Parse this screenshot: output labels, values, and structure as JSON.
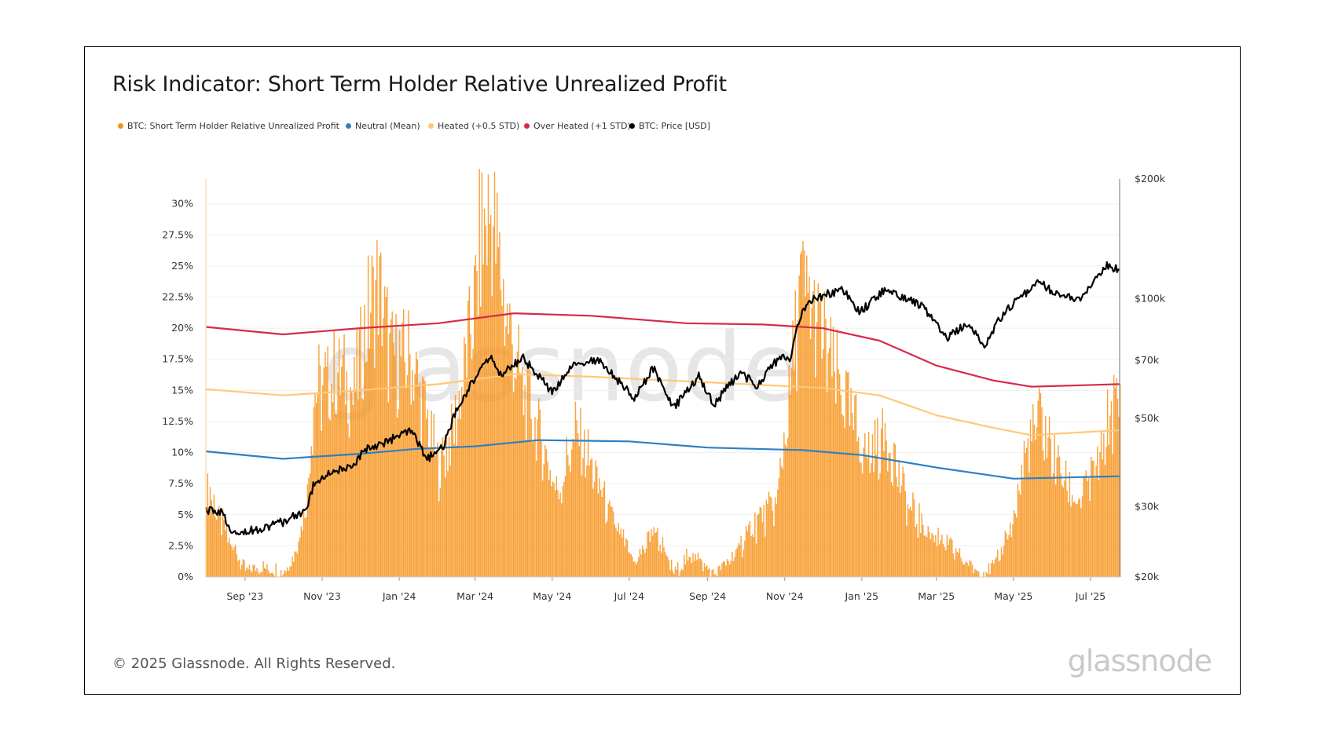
{
  "title": "Risk Indicator: Short Term Holder Relative Unrealized Profit",
  "legend": [
    {
      "label": "BTC: Short Term Holder Relative Unrealized Profit",
      "color": "#f7931a"
    },
    {
      "label": "Neutral (Mean)",
      "color": "#2f7fc1"
    },
    {
      "label": "Heated (+0.5 STD)",
      "color": "#ffc87a"
    },
    {
      "label": "Over Heated (+1 STD)",
      "color": "#d62a4a"
    },
    {
      "label": "BTC: Price [USD]",
      "color": "#000000"
    }
  ],
  "watermark": "glassnode",
  "footer": "© 2025 Glassnode. All Rights Reserved.",
  "logo": "glassnode",
  "chart_data": {
    "type": "bar",
    "x_start": "2023-08-01",
    "x_end": "2025-07-24",
    "x_ticks": [
      "Sep '23",
      "Nov '23",
      "Jan '24",
      "Mar '24",
      "May '24",
      "Jul '24",
      "Sep '24",
      "Nov '24",
      "Jan '25",
      "Mar '25",
      "May '25",
      "Jul '25"
    ],
    "y_left": {
      "ticks": [
        "0%",
        "2.5%",
        "5%",
        "7.5%",
        "10%",
        "12.5%",
        "15%",
        "17.5%",
        "20%",
        "22.5%",
        "25%",
        "27.5%",
        "30%"
      ],
      "ylim": [
        0,
        32
      ]
    },
    "y_right": {
      "ticks": [
        "$20k",
        "$30k",
        "$50k",
        "$70k",
        "$100k",
        "$200k"
      ],
      "scale": "log",
      "ylim": [
        20000,
        200000
      ]
    },
    "grid": true,
    "series": [
      {
        "name": "BTC: Short Term Holder Relative Unrealized Profit",
        "kind": "bar",
        "color": "#f7931a",
        "points": [
          [
            "2023-08-01",
            7.5
          ],
          [
            "2023-08-10",
            5
          ],
          [
            "2023-08-20",
            3
          ],
          [
            "2023-09-01",
            0.5
          ],
          [
            "2023-09-15",
            0.8
          ],
          [
            "2023-10-01",
            0.5
          ],
          [
            "2023-10-10",
            2
          ],
          [
            "2023-10-20",
            7
          ],
          [
            "2023-10-25",
            15
          ],
          [
            "2023-11-05",
            16
          ],
          [
            "2023-11-15",
            17
          ],
          [
            "2023-11-25",
            15
          ],
          [
            "2023-12-08",
            22
          ],
          [
            "2023-12-15",
            24
          ],
          [
            "2023-12-25",
            18
          ],
          [
            "2024-01-10",
            18
          ],
          [
            "2024-01-20",
            14
          ],
          [
            "2024-02-01",
            9
          ],
          [
            "2024-02-15",
            13
          ],
          [
            "2024-03-01",
            23
          ],
          [
            "2024-03-05",
            28
          ],
          [
            "2024-03-14",
            30
          ],
          [
            "2024-03-25",
            22
          ],
          [
            "2024-04-05",
            16
          ],
          [
            "2024-04-20",
            12
          ],
          [
            "2024-05-05",
            7
          ],
          [
            "2024-05-20",
            12
          ],
          [
            "2024-06-01",
            9
          ],
          [
            "2024-06-15",
            5
          ],
          [
            "2024-07-05",
            1
          ],
          [
            "2024-07-20",
            4
          ],
          [
            "2024-08-05",
            0.3
          ],
          [
            "2024-08-20",
            2
          ],
          [
            "2024-09-05",
            0.2
          ],
          [
            "2024-09-20",
            1.5
          ],
          [
            "2024-10-05",
            4
          ],
          [
            "2024-10-25",
            6
          ],
          [
            "2024-11-06",
            16
          ],
          [
            "2024-11-13",
            24
          ],
          [
            "2024-11-22",
            22
          ],
          [
            "2024-12-05",
            18
          ],
          [
            "2024-12-20",
            14
          ],
          [
            "2025-01-05",
            10
          ],
          [
            "2025-01-20",
            12
          ],
          [
            "2025-02-05",
            6
          ],
          [
            "2025-02-20",
            4
          ],
          [
            "2025-03-05",
            3
          ],
          [
            "2025-03-20",
            1.5
          ],
          [
            "2025-04-05",
            0.3
          ],
          [
            "2025-04-20",
            1.5
          ],
          [
            "2025-05-01",
            5
          ],
          [
            "2025-05-10",
            10
          ],
          [
            "2025-05-22",
            13
          ],
          [
            "2025-06-01",
            10
          ],
          [
            "2025-06-20",
            6
          ],
          [
            "2025-07-01",
            8
          ],
          [
            "2025-07-10",
            10
          ],
          [
            "2025-07-17",
            14
          ],
          [
            "2025-07-24",
            14
          ]
        ]
      },
      {
        "name": "Neutral (Mean)",
        "kind": "line",
        "axis": "left",
        "color": "#2f7fc1",
        "points": [
          [
            "2023-08-01",
            10.1
          ],
          [
            "2023-10-01",
            9.5
          ],
          [
            "2023-12-01",
            9.9
          ],
          [
            "2024-01-15",
            10.3
          ],
          [
            "2024-03-01",
            10.5
          ],
          [
            "2024-04-20",
            11.0
          ],
          [
            "2024-07-01",
            10.9
          ],
          [
            "2024-09-01",
            10.4
          ],
          [
            "2024-11-15",
            10.2
          ],
          [
            "2025-01-01",
            9.8
          ],
          [
            "2025-03-01",
            8.8
          ],
          [
            "2025-05-01",
            7.9
          ],
          [
            "2025-07-24",
            8.1
          ]
        ]
      },
      {
        "name": "Heated (+0.5 STD)",
        "kind": "line",
        "axis": "left",
        "color": "#ffc87a",
        "points": [
          [
            "2023-08-01",
            15.1
          ],
          [
            "2023-10-01",
            14.6
          ],
          [
            "2023-12-01",
            15.0
          ],
          [
            "2024-02-01",
            15.5
          ],
          [
            "2024-04-01",
            16.3
          ],
          [
            "2024-06-01",
            16.1
          ],
          [
            "2024-08-01",
            15.8
          ],
          [
            "2024-10-01",
            15.5
          ],
          [
            "2024-12-01",
            15.2
          ],
          [
            "2025-01-15",
            14.6
          ],
          [
            "2025-03-01",
            13.0
          ],
          [
            "2025-04-15",
            12.0
          ],
          [
            "2025-05-15",
            11.4
          ],
          [
            "2025-07-24",
            11.8
          ]
        ]
      },
      {
        "name": "Over Heated (+1 STD)",
        "kind": "line",
        "axis": "left",
        "color": "#d62a4a",
        "points": [
          [
            "2023-08-01",
            20.1
          ],
          [
            "2023-10-01",
            19.5
          ],
          [
            "2023-12-01",
            20.0
          ],
          [
            "2024-02-01",
            20.4
          ],
          [
            "2024-04-01",
            21.2
          ],
          [
            "2024-06-01",
            21.0
          ],
          [
            "2024-08-15",
            20.4
          ],
          [
            "2024-10-15",
            20.3
          ],
          [
            "2024-12-01",
            20.0
          ],
          [
            "2025-01-15",
            19.0
          ],
          [
            "2025-03-01",
            17.0
          ],
          [
            "2025-04-15",
            15.8
          ],
          [
            "2025-05-15",
            15.3
          ],
          [
            "2025-07-24",
            15.5
          ]
        ]
      },
      {
        "name": "BTC: Price [USD]",
        "kind": "line",
        "axis": "right",
        "color": "#000000",
        "points": [
          [
            "2023-08-01",
            29300
          ],
          [
            "2023-08-16",
            29000
          ],
          [
            "2023-08-18",
            26500
          ],
          [
            "2023-09-01",
            26000
          ],
          [
            "2023-09-15",
            26600
          ],
          [
            "2023-10-01",
            27500
          ],
          [
            "2023-10-20",
            29500
          ],
          [
            "2023-10-25",
            34000
          ],
          [
            "2023-11-10",
            37000
          ],
          [
            "2023-11-25",
            37500
          ],
          [
            "2023-12-05",
            42000
          ],
          [
            "2023-12-20",
            43500
          ],
          [
            "2024-01-10",
            46500
          ],
          [
            "2024-01-23",
            39500
          ],
          [
            "2024-02-05",
            42500
          ],
          [
            "2024-02-15",
            52000
          ],
          [
            "2024-02-28",
            62000
          ],
          [
            "2024-03-14",
            72000
          ],
          [
            "2024-03-20",
            64000
          ],
          [
            "2024-04-08",
            71000
          ],
          [
            "2024-04-20",
            64000
          ],
          [
            "2024-05-01",
            58000
          ],
          [
            "2024-05-20",
            69000
          ],
          [
            "2024-06-07",
            70000
          ],
          [
            "2024-06-25",
            61000
          ],
          [
            "2024-07-05",
            56000
          ],
          [
            "2024-07-20",
            67000
          ],
          [
            "2024-08-05",
            53000
          ],
          [
            "2024-08-25",
            64000
          ],
          [
            "2024-09-06",
            54000
          ],
          [
            "2024-09-27",
            65500
          ],
          [
            "2024-10-10",
            60000
          ],
          [
            "2024-10-29",
            72000
          ],
          [
            "2024-11-05",
            69000
          ],
          [
            "2024-11-13",
            90000
          ],
          [
            "2024-11-22",
            99000
          ],
          [
            "2024-12-17",
            106000
          ],
          [
            "2024-12-30",
            92000
          ],
          [
            "2025-01-20",
            106000
          ],
          [
            "2025-02-15",
            97000
          ],
          [
            "2025-03-10",
            80000
          ],
          [
            "2025-03-25",
            87000
          ],
          [
            "2025-04-08",
            76000
          ],
          [
            "2025-04-25",
            94000
          ],
          [
            "2025-05-22",
            110000
          ],
          [
            "2025-06-05",
            102000
          ],
          [
            "2025-06-22",
            100000
          ],
          [
            "2025-07-03",
            109000
          ],
          [
            "2025-07-14",
            122000
          ],
          [
            "2025-07-24",
            118000
          ]
        ]
      }
    ]
  }
}
